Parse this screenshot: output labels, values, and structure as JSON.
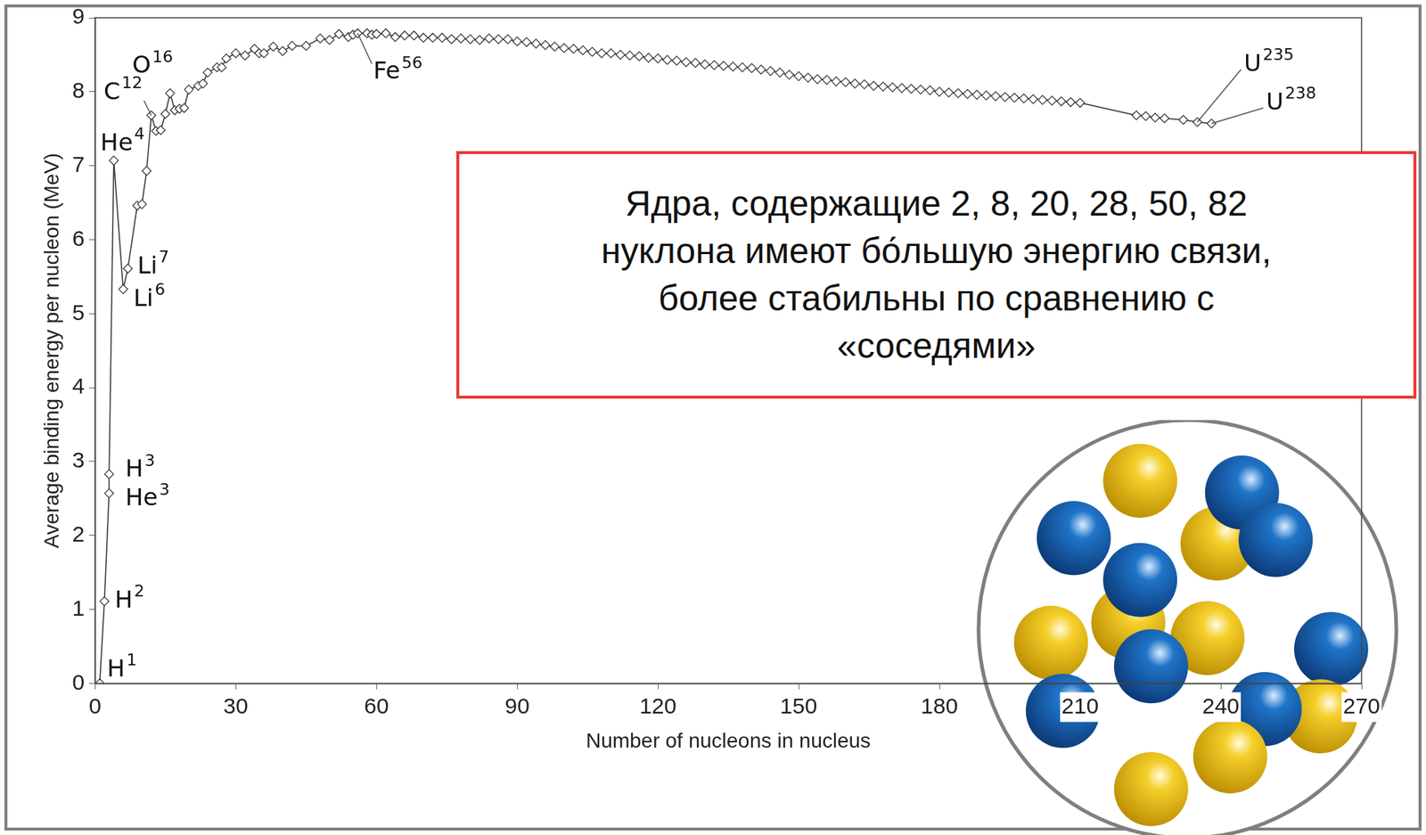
{
  "chart_data": {
    "type": "line",
    "x_label": "Number of nucleons in nucleus",
    "y_label": "Average binding energy per nucleon (MeV)",
    "x": [
      1,
      2,
      3,
      3,
      4,
      6,
      7,
      9,
      10,
      11,
      12,
      13,
      14,
      15,
      16,
      17,
      18,
      19,
      20,
      22,
      23,
      24,
      26,
      27,
      28,
      30,
      32,
      34,
      35,
      36,
      38,
      40,
      42,
      45,
      48,
      50,
      52,
      54,
      55,
      56,
      58,
      59,
      60,
      62,
      64,
      66,
      68,
      70,
      72,
      74,
      76,
      78,
      80,
      82,
      84,
      86,
      88,
      90,
      92,
      94,
      96,
      98,
      100,
      102,
      104,
      106,
      108,
      110,
      112,
      114,
      116,
      118,
      120,
      122,
      124,
      126,
      128,
      130,
      132,
      134,
      136,
      138,
      140,
      142,
      144,
      146,
      148,
      150,
      152,
      154,
      156,
      158,
      160,
      162,
      164,
      166,
      168,
      170,
      172,
      174,
      176,
      178,
      180,
      182,
      184,
      186,
      188,
      190,
      192,
      194,
      196,
      198,
      200,
      202,
      204,
      206,
      208,
      210,
      222,
      224,
      226,
      228,
      232,
      235,
      238
    ],
    "values": [
      0,
      1.11,
      2.57,
      2.83,
      7.07,
      5.33,
      5.61,
      6.46,
      6.48,
      6.93,
      7.68,
      7.47,
      7.48,
      7.7,
      7.98,
      7.75,
      7.77,
      7.78,
      8.03,
      8.08,
      8.11,
      8.26,
      8.33,
      8.33,
      8.45,
      8.52,
      8.49,
      8.58,
      8.52,
      8.52,
      8.61,
      8.55,
      8.62,
      8.62,
      8.72,
      8.7,
      8.78,
      8.74,
      8.77,
      8.79,
      8.79,
      8.77,
      8.78,
      8.79,
      8.74,
      8.76,
      8.76,
      8.73,
      8.73,
      8.73,
      8.71,
      8.72,
      8.71,
      8.7,
      8.72,
      8.71,
      8.71,
      8.68,
      8.67,
      8.65,
      8.63,
      8.61,
      8.59,
      8.58,
      8.56,
      8.54,
      8.52,
      8.52,
      8.5,
      8.49,
      8.48,
      8.46,
      8.45,
      8.43,
      8.42,
      8.4,
      8.39,
      8.37,
      8.36,
      8.35,
      8.34,
      8.33,
      8.32,
      8.3,
      8.28,
      8.26,
      8.23,
      8.21,
      8.19,
      8.17,
      8.16,
      8.14,
      8.13,
      8.11,
      8.1,
      8.08,
      8.07,
      8.06,
      8.05,
      8.04,
      8.03,
      8.02,
      8.0,
      7.99,
      7.98,
      7.97,
      7.96,
      7.95,
      7.94,
      7.93,
      7.92,
      7.91,
      7.9,
      7.89,
      7.88,
      7.87,
      7.86,
      7.85,
      7.68,
      7.67,
      7.65,
      7.64,
      7.62,
      7.59,
      7.57
    ],
    "color": "#333333",
    "marker": "diamond",
    "xlim": [
      0,
      270
    ],
    "xticks": [
      0,
      30,
      60,
      90,
      120,
      150,
      180,
      210,
      240,
      270
    ],
    "ylim": [
      0,
      9
    ],
    "yticks": [
      0,
      1,
      2,
      3,
      4,
      5,
      6,
      7,
      8,
      9
    ],
    "grid": false,
    "point_labels": [
      {
        "symbol": "H",
        "superscript": "1",
        "x": 1,
        "y": 0
      },
      {
        "symbol": "H",
        "superscript": "2",
        "x": 2,
        "y": 1.11
      },
      {
        "symbol": "He",
        "superscript": "3",
        "x": 3,
        "y": 2.57
      },
      {
        "symbol": "H",
        "superscript": "3",
        "x": 3,
        "y": 2.83
      },
      {
        "symbol": "He",
        "superscript": "4",
        "x": 4,
        "y": 7.07
      },
      {
        "symbol": "Li",
        "superscript": "6",
        "x": 6,
        "y": 5.33
      },
      {
        "symbol": "Li",
        "superscript": "7",
        "x": 7,
        "y": 5.61
      },
      {
        "symbol": "C",
        "superscript": "12",
        "x": 12,
        "y": 7.68
      },
      {
        "symbol": "O",
        "superscript": "16",
        "x": 16,
        "y": 7.98
      },
      {
        "symbol": "Fe",
        "superscript": "56",
        "x": 56,
        "y": 8.79
      },
      {
        "symbol": "U",
        "superscript": "235",
        "x": 235,
        "y": 7.59
      },
      {
        "symbol": "U",
        "superscript": "238",
        "x": 238,
        "y": 7.57
      }
    ],
    "annotation": [
      "Ядра, содержащие 2, 8, 20, 28, 50, 82",
      "нуклона имеют бо́льшую энергию связи,",
      "более стабильны по сравнению с",
      "«соседями»"
    ]
  }
}
